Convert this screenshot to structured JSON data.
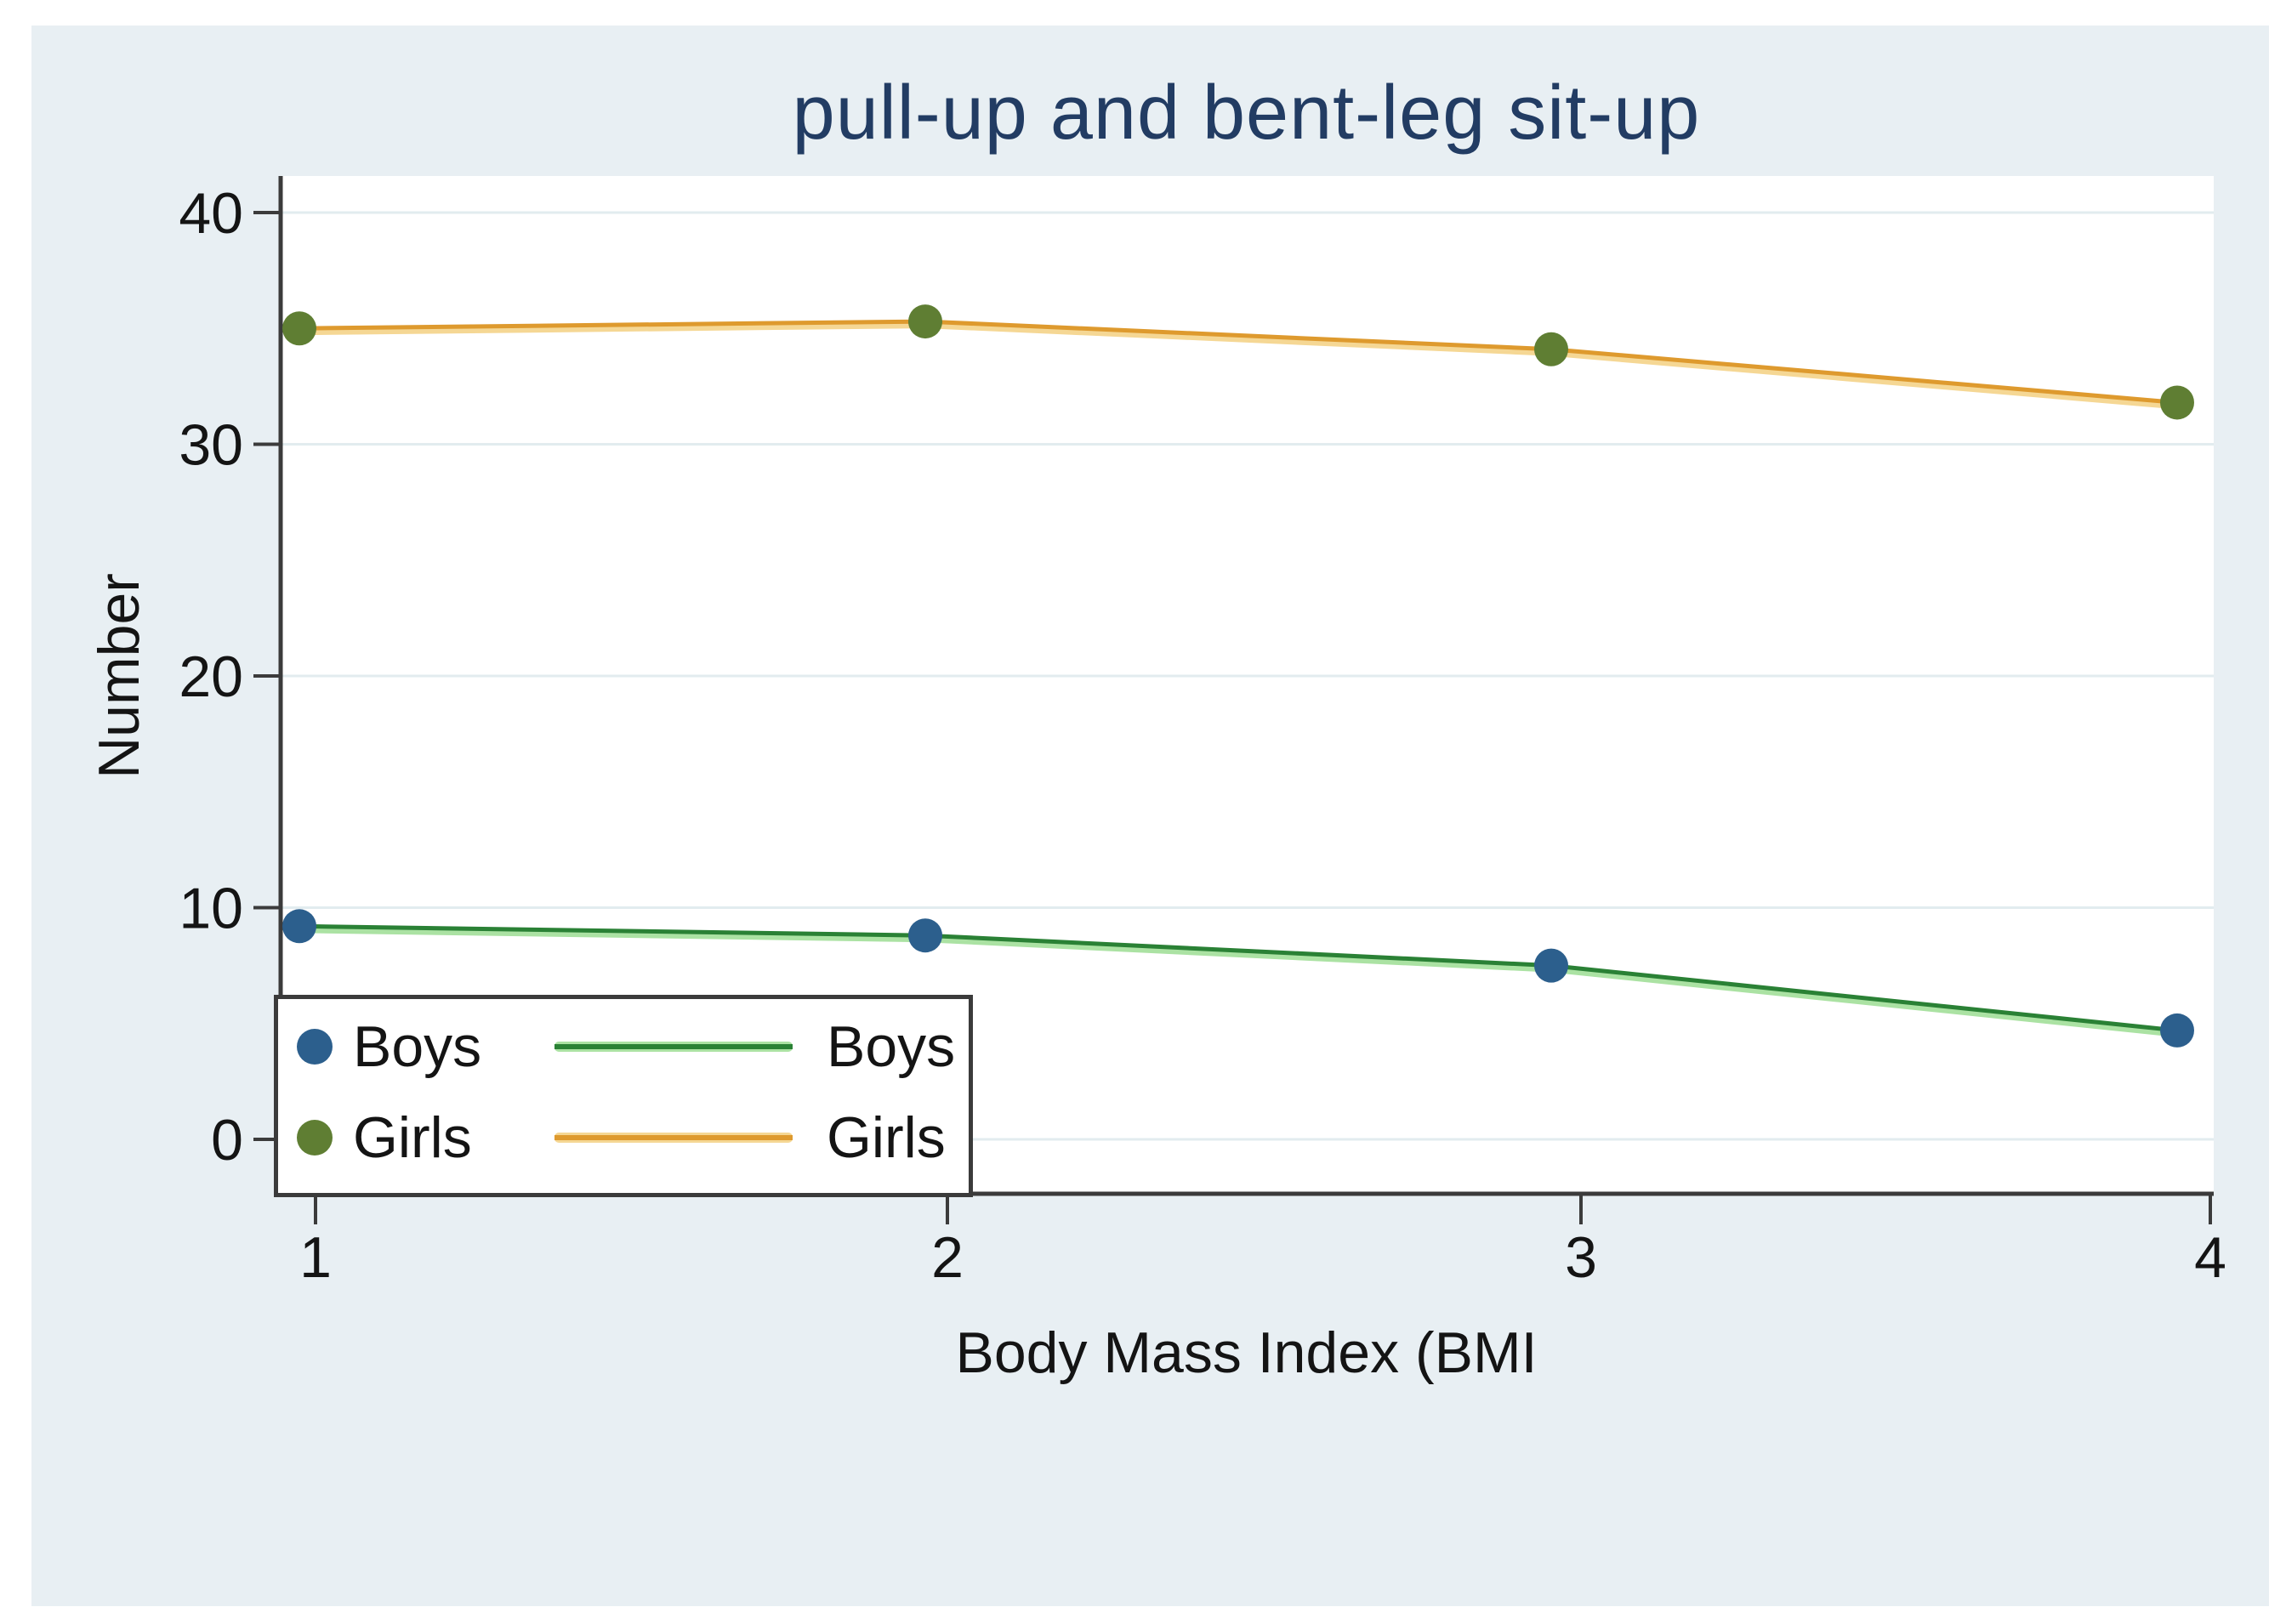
{
  "chart_data": {
    "type": "line",
    "title": "pull-up and bent-leg sit-up",
    "xlabel": "Body Mass Index (BMI",
    "ylabel": "Number",
    "x": [
      1,
      2,
      3,
      4
    ],
    "xticks": [
      "1",
      "2",
      "3",
      "4"
    ],
    "yticks": [
      0,
      10,
      20,
      30,
      40
    ],
    "ylim": [
      0,
      40
    ],
    "grid": "horizontal",
    "legend_position": "bottom-left",
    "series": [
      {
        "name": "Boys",
        "values": [
          9.2,
          8.8,
          7.5,
          4.7
        ],
        "line_color": "#2a8135",
        "line_halo": "#abe2a3",
        "marker_color": "#2c5f8d"
      },
      {
        "name": "Girls",
        "values": [
          35.0,
          35.3,
          34.1,
          31.8
        ],
        "line_color": "#de9a2e",
        "line_halo": "#f5d794",
        "marker_color": "#5f7e33"
      }
    ],
    "legend": {
      "marker_entries": [
        {
          "label": "Boys"
        },
        {
          "label": "Girls"
        }
      ],
      "line_entries": [
        {
          "label": "Boys"
        },
        {
          "label": "Girls"
        }
      ]
    }
  },
  "colors": {
    "page_bg": "#ffffff",
    "canvas_bg": "#e8eff3",
    "plot_bg": "#ffffff",
    "grid": "#e2ecef",
    "axis": "#3b3b3b",
    "title_text": "#223c63",
    "tick_text": "#141414",
    "legend_border": "#3b3b3b",
    "legend_bg": "#ffffff"
  }
}
